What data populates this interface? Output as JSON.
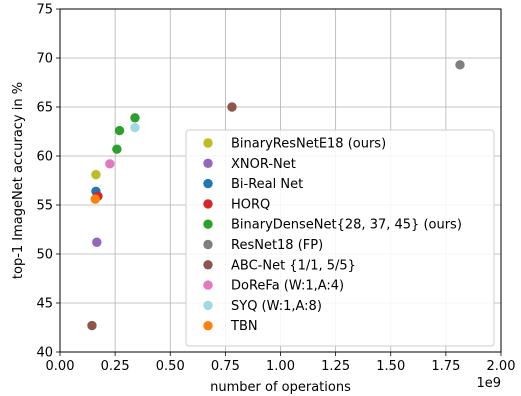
{
  "chart_data": {
    "type": "scatter",
    "xlabel": "number of operations",
    "ylabel": "top-1 ImageNet accuracy in %",
    "x_offset_label": "1e9",
    "xlim": [
      0.0,
      2.0
    ],
    "ylim": [
      40,
      75
    ],
    "x_ticks": [
      0.0,
      0.25,
      0.5,
      0.75,
      1.0,
      1.25,
      1.5,
      1.75,
      2.0
    ],
    "x_tick_labels": [
      "0.00",
      "0.25",
      "0.50",
      "0.75",
      "1.00",
      "1.25",
      "1.50",
      "1.75",
      "2.00"
    ],
    "y_ticks": [
      40,
      45,
      50,
      55,
      60,
      65,
      70,
      75
    ],
    "y_tick_labels": [
      "40",
      "45",
      "50",
      "55",
      "60",
      "65",
      "70",
      "75"
    ],
    "grid": true,
    "legend_position": "lower-right",
    "series": [
      {
        "name": "BinaryResNetE18 (ours)",
        "color": "#bcbd22",
        "points": [
          [
            0.163,
            58.1
          ]
        ]
      },
      {
        "name": "XNOR-Net",
        "color": "#9467bd",
        "points": [
          [
            0.167,
            51.2
          ]
        ]
      },
      {
        "name": "Bi-Real Net",
        "color": "#1f77b4",
        "points": [
          [
            0.163,
            56.4
          ]
        ]
      },
      {
        "name": "HORQ",
        "color": "#d62728",
        "points": [
          [
            0.172,
            55.9
          ]
        ]
      },
      {
        "name": "BinaryDenseNet{28, 37, 45} (ours)",
        "color": "#2ca02c",
        "points": [
          [
            0.258,
            60.7
          ],
          [
            0.27,
            62.6
          ],
          [
            0.34,
            63.9
          ]
        ]
      },
      {
        "name": "ResNet18 (FP)",
        "color": "#7f7f7f",
        "points": [
          [
            1.814,
            69.3
          ]
        ]
      },
      {
        "name": "ABC-Net {1/1, 5/5}",
        "color": "#8c564b",
        "points": [
          [
            0.145,
            42.7
          ],
          [
            0.78,
            65.0
          ]
        ]
      },
      {
        "name": "DoReFa (W:1,A:4)",
        "color": "#e377c2",
        "points": [
          [
            0.226,
            59.2
          ]
        ]
      },
      {
        "name": "SYQ (W:1,A:8)",
        "color": "#9edae5",
        "points": [
          [
            0.34,
            62.9
          ]
        ]
      },
      {
        "name": "TBN",
        "color": "#ff7f0e",
        "points": [
          [
            0.16,
            55.6
          ]
        ]
      }
    ]
  }
}
